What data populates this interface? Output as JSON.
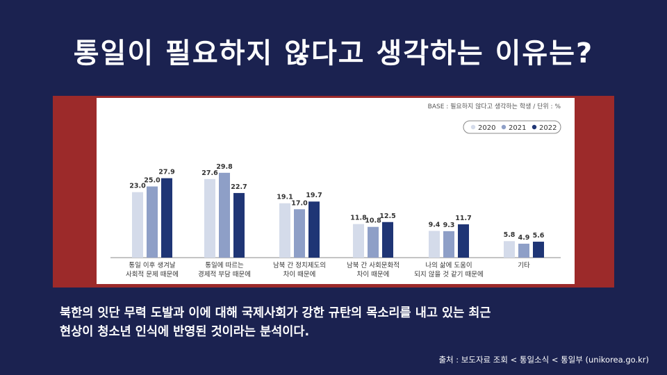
{
  "slide": {
    "title": "통일이 필요하지 않다고 생각하는 이유는?",
    "caption_line1": "북한의 잇단 무력 도발과 이에 대해 국제사회가 강한 규탄의 목소리를 내고 있는 최근",
    "caption_line2": "현상이 청소년 인식에 반영된 것이라는 분석이다.",
    "source": "출처 : 보도자료 조회 < 통일소식 < 통일부 (unikorea.go.kr)"
  },
  "chart_data": {
    "type": "bar",
    "base_note": "BASE : 필요하지 않다고 생각하는 학생 / 단위 : %",
    "categories": [
      [
        "통일 이후 생겨날",
        "사회적 문제 때문에"
      ],
      [
        "통일에 따르는",
        "경제적 부담 때문에"
      ],
      [
        "남북 간 정치제도의",
        "차이 때문에"
      ],
      [
        "남북 간 사회문화적",
        "차이 때문에"
      ],
      [
        "나의 삶에 도움이",
        "되지 않을 것 같기 때문에"
      ],
      [
        "기타"
      ]
    ],
    "series": [
      {
        "name": "2020",
        "color": "#d4dbea",
        "values": [
          23.0,
          27.6,
          19.1,
          11.8,
          9.4,
          5.8
        ]
      },
      {
        "name": "2021",
        "color": "#8e9fc7",
        "values": [
          25.0,
          29.8,
          17.0,
          10.8,
          9.3,
          4.9
        ]
      },
      {
        "name": "2022",
        "color": "#1f3575",
        "values": [
          27.9,
          22.7,
          19.7,
          12.5,
          11.7,
          5.6
        ]
      }
    ],
    "value_labels": [
      [
        "23.0",
        "25.0",
        "27.9"
      ],
      [
        "27.6",
        "29.8",
        "22.7"
      ],
      [
        "19.1",
        "17.0",
        "19.7"
      ],
      [
        "11.8",
        "10.8",
        "12.5"
      ],
      [
        "9.4",
        "9.3",
        "11.7"
      ],
      [
        "5.8",
        "4.9",
        "5.6"
      ]
    ],
    "legend_position": "top-right",
    "grid": false,
    "ylim": [
      0,
      40
    ]
  }
}
